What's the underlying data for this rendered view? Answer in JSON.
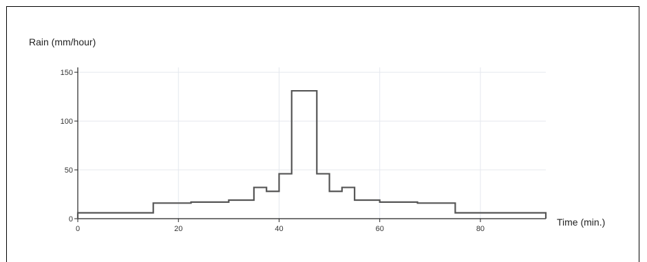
{
  "chart_data": {
    "type": "line",
    "step": true,
    "ylabel": "Rain (mm/hour)",
    "xlabel": "Time (min.)",
    "xlim": [
      0,
      93
    ],
    "ylim": [
      0,
      155
    ],
    "x_ticks": [
      0,
      20,
      40,
      60,
      80
    ],
    "y_ticks": [
      0,
      50,
      100,
      150
    ],
    "grid": true,
    "series": [
      {
        "values": [
          {
            "x_start": 0,
            "x_end": 15,
            "y": 6
          },
          {
            "x_start": 15,
            "x_end": 22.5,
            "y": 16
          },
          {
            "x_start": 22.5,
            "x_end": 30,
            "y": 17
          },
          {
            "x_start": 30,
            "x_end": 35,
            "y": 19
          },
          {
            "x_start": 35,
            "x_end": 37.5,
            "y": 32
          },
          {
            "x_start": 37.5,
            "x_end": 40,
            "y": 28
          },
          {
            "x_start": 40,
            "x_end": 42.5,
            "y": 46
          },
          {
            "x_start": 42.5,
            "x_end": 47.5,
            "y": 131
          },
          {
            "x_start": 47.5,
            "x_end": 50,
            "y": 46
          },
          {
            "x_start": 50,
            "x_end": 52.5,
            "y": 28
          },
          {
            "x_start": 52.5,
            "x_end": 55,
            "y": 32
          },
          {
            "x_start": 55,
            "x_end": 60,
            "y": 19
          },
          {
            "x_start": 60,
            "x_end": 67.5,
            "y": 17
          },
          {
            "x_start": 67.5,
            "x_end": 75,
            "y": 16
          },
          {
            "x_start": 75,
            "x_end": 93,
            "y": 6
          }
        ]
      }
    ],
    "colors": {
      "line": "#555555",
      "grid": "#e4e8ee",
      "axis": "#222222"
    }
  }
}
